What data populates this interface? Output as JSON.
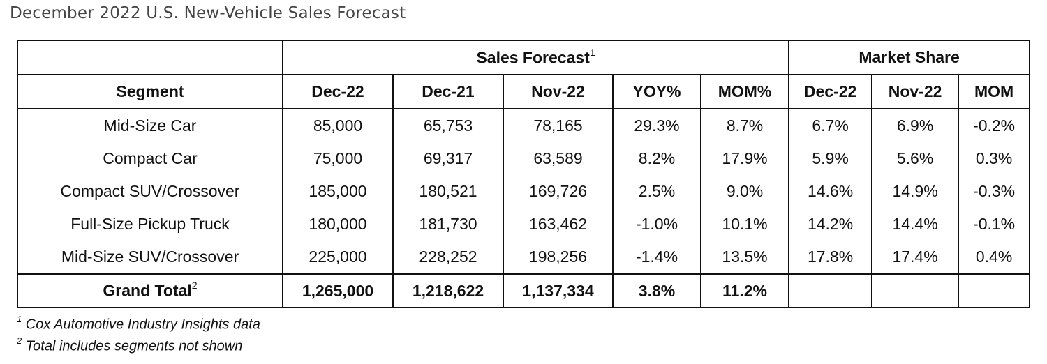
{
  "title": "December 2022 U.S. New-Vehicle Sales Forecast",
  "groups": {
    "sales_forecast": "Sales Forecast",
    "sales_forecast_sup": "1",
    "market_share": "Market Share"
  },
  "columns": [
    "Segment",
    "Dec-22",
    "Dec-21",
    "Nov-22",
    "YOY%",
    "MOM%",
    "Dec-22",
    "Nov-22",
    "MOM"
  ],
  "rows": [
    [
      "Mid-Size Car",
      "85,000",
      "65,753",
      "78,165",
      "29.3%",
      "8.7%",
      "6.7%",
      "6.9%",
      "-0.2%"
    ],
    [
      "Compact Car",
      "75,000",
      "69,317",
      "63,589",
      "8.2%",
      "17.9%",
      "5.9%",
      "5.6%",
      "0.3%"
    ],
    [
      "Compact SUV/Crossover",
      "185,000",
      "180,521",
      "169,726",
      "2.5%",
      "9.0%",
      "14.6%",
      "14.9%",
      "-0.3%"
    ],
    [
      "Full-Size Pickup Truck",
      "180,000",
      "181,730",
      "163,462",
      "-1.0%",
      "10.1%",
      "14.2%",
      "14.4%",
      "-0.1%"
    ],
    [
      "Mid-Size SUV/Crossover",
      "225,000",
      "228,252",
      "198,256",
      "-1.4%",
      "13.5%",
      "17.8%",
      "17.4%",
      "0.4%"
    ]
  ],
  "total": {
    "label": "Grand Total",
    "label_sup": "2",
    "values": [
      "1,265,000",
      "1,218,622",
      "1,137,334",
      "3.8%",
      "11.2%",
      "",
      "",
      ""
    ]
  },
  "footnotes": [
    {
      "mark": "1",
      "text": "Cox Automotive Industry Insights data"
    },
    {
      "mark": "2",
      "text": "Total includes segments not shown"
    }
  ]
}
